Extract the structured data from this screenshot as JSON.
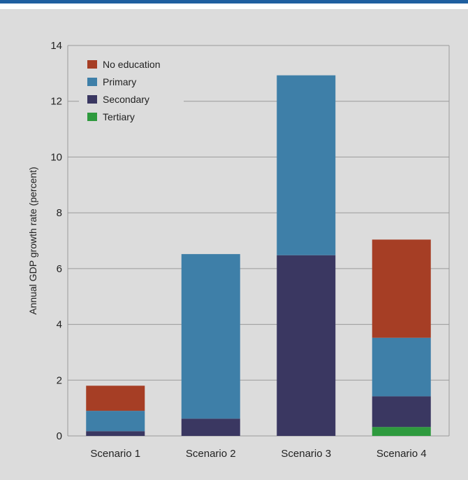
{
  "chart_data": {
    "type": "bar",
    "stacked": true,
    "categories": [
      "Scenario 1",
      "Scenario 2",
      "Scenario 3",
      "Scenario 4"
    ],
    "series": [
      {
        "name": "Tertiary",
        "color": "#2e9a3e",
        "values": [
          0,
          0,
          0,
          0.32
        ]
      },
      {
        "name": "Secondary",
        "color": "#3a3761",
        "values": [
          0.17,
          0.62,
          6.48,
          1.1
        ]
      },
      {
        "name": "Primary",
        "color": "#3e7fa8",
        "values": [
          0.73,
          5.9,
          6.45,
          2.1
        ]
      },
      {
        "name": "No education",
        "color": "#a63e25",
        "values": [
          0.9,
          0,
          0,
          3.52
        ]
      }
    ],
    "legend_order": [
      "No education",
      "Primary",
      "Secondary",
      "Tertiary"
    ],
    "ylabel": "Annual GDP growth rate (percent)",
    "xlabel": "",
    "ylim": [
      0,
      14
    ],
    "yticks": [
      0,
      2,
      4,
      6,
      8,
      10,
      12,
      14
    ],
    "grid": true,
    "legend_position": "top-left"
  }
}
